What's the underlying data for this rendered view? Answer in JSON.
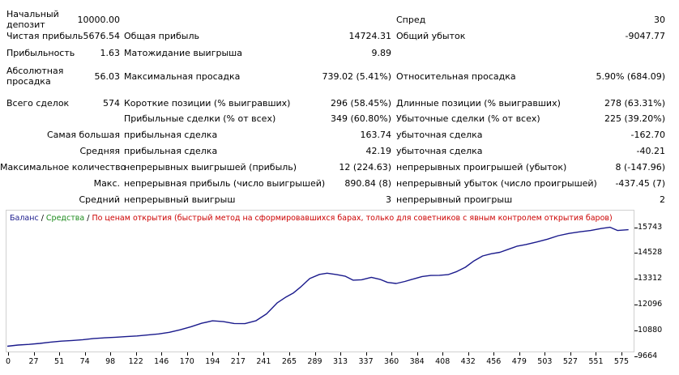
{
  "report": {
    "rows": [
      {
        "id": "r1",
        "c1": "Начальный\nдепозит",
        "v1": "10000.00",
        "c2": "",
        "v2": "",
        "c3": "Спред",
        "v3": "30"
      },
      {
        "id": "r2",
        "c1": "Чистая прибыль",
        "v1": "5676.54",
        "c2": "Общая прибыль",
        "v2": "14724.31",
        "c3": "Общий убыток",
        "v3": "-9047.77"
      },
      {
        "id": "r3",
        "c1": "Прибыльность",
        "v1": "1.63",
        "c2": "Матожидание выигрыша",
        "v2": "9.89",
        "c3": "",
        "v3": ""
      },
      {
        "id": "r4",
        "c1": "Абсолютная\nпросадка",
        "v1": "56.03",
        "c2": "Максимальная просадка",
        "v2": "739.02 (5.41%)",
        "c3": "Относительная просадка",
        "v3": "5.90% (684.09)"
      },
      {
        "id": "r5",
        "c1": "Всего сделок",
        "v1": "574",
        "c2": "Короткие позиции (% выигравших)",
        "v2": "296 (58.45%)",
        "c3": "Длинные позиции (% выигравших)",
        "v3": "278 (63.31%)"
      },
      {
        "id": "r6",
        "c1": "",
        "v1": "",
        "c2": "Прибыльные сделки (% от всех)",
        "v2": "349 (60.80%)",
        "c3": "Убыточные сделки (% от всех)",
        "v3": "225 (39.20%)"
      },
      {
        "id": "r7",
        "c1": "Самая большая",
        "v1": "",
        "c2": "прибыльная сделка",
        "v2": "163.74",
        "c3": "убыточная сделка",
        "v3": "-162.70"
      },
      {
        "id": "r8",
        "c1": "Средняя",
        "v1": "",
        "c2": "прибыльная сделка",
        "v2": "42.19",
        "c3": "убыточная сделка",
        "v3": "-40.21"
      },
      {
        "id": "r9",
        "c1": "Максимальное количество",
        "v1": "",
        "c2": "непрерывных выигрышей (прибыль)",
        "v2": "12 (224.63)",
        "c3": "непрерывных проигрышей (убыток)",
        "v3": "8 (-147.96)"
      },
      {
        "id": "r10",
        "c1": "Макс.",
        "v1": "",
        "c2": "непрерывная прибыль (число выигрышей)",
        "v2": "890.84 (8)",
        "c3": "непрерывный убыток (число проигрышей)",
        "v3": "-437.45 (7)"
      },
      {
        "id": "r11",
        "c1": "Средний",
        "v1": "",
        "c2": "непрерывный выигрыш",
        "v2": "3",
        "c3": "непрерывный проигрыш",
        "v3": "2"
      }
    ]
  },
  "legend": {
    "balance": "Баланс",
    "sep1": " / ",
    "equity": "Средства",
    "sep2": " / ",
    "mode": "По ценам открытия (быстрый метод на сформировавшихся барах, только для советников с явным контролем открытия баров)"
  },
  "colors": {
    "balance": "#1a1a8c",
    "equity": "#1c8a1c",
    "mode": "#cc0000",
    "grid": "#d0d0d0"
  },
  "chart_data": {
    "type": "line",
    "title": "",
    "xlabel": "",
    "ylabel": "",
    "x_ticks": [
      "0",
      "27",
      "51",
      "74",
      "98",
      "122",
      "146",
      "170",
      "194",
      "217",
      "241",
      "265",
      "289",
      "313",
      "337",
      "360",
      "384",
      "408",
      "432",
      "456",
      "479",
      "503",
      "527",
      "551",
      "575"
    ],
    "y_ticks": [
      "15743",
      "14528",
      "13312",
      "12096",
      "10880",
      "9664"
    ],
    "xlim": [
      0,
      576
    ],
    "ylim": [
      9664,
      15743
    ],
    "series": [
      {
        "name": "Баланс",
        "points": [
          [
            0,
            9920
          ],
          [
            10,
            9980
          ],
          [
            20,
            10010
          ],
          [
            30,
            10060
          ],
          [
            40,
            10120
          ],
          [
            50,
            10170
          ],
          [
            60,
            10200
          ],
          [
            70,
            10240
          ],
          [
            80,
            10300
          ],
          [
            90,
            10330
          ],
          [
            100,
            10360
          ],
          [
            110,
            10390
          ],
          [
            120,
            10420
          ],
          [
            130,
            10470
          ],
          [
            140,
            10520
          ],
          [
            150,
            10600
          ],
          [
            160,
            10720
          ],
          [
            170,
            10870
          ],
          [
            180,
            11040
          ],
          [
            190,
            11160
          ],
          [
            200,
            11120
          ],
          [
            210,
            11030
          ],
          [
            220,
            11020
          ],
          [
            230,
            11160
          ],
          [
            240,
            11500
          ],
          [
            250,
            12040
          ],
          [
            258,
            12320
          ],
          [
            265,
            12520
          ],
          [
            272,
            12830
          ],
          [
            280,
            13220
          ],
          [
            289,
            13420
          ],
          [
            296,
            13480
          ],
          [
            305,
            13410
          ],
          [
            313,
            13330
          ],
          [
            320,
            13140
          ],
          [
            328,
            13160
          ],
          [
            337,
            13280
          ],
          [
            345,
            13180
          ],
          [
            352,
            13030
          ],
          [
            360,
            12980
          ],
          [
            368,
            13080
          ],
          [
            376,
            13200
          ],
          [
            384,
            13320
          ],
          [
            392,
            13370
          ],
          [
            400,
            13380
          ],
          [
            408,
            13410
          ],
          [
            416,
            13560
          ],
          [
            424,
            13770
          ],
          [
            432,
            14080
          ],
          [
            440,
            14320
          ],
          [
            448,
            14430
          ],
          [
            456,
            14500
          ],
          [
            464,
            14650
          ],
          [
            472,
            14800
          ],
          [
            480,
            14880
          ],
          [
            490,
            15000
          ],
          [
            500,
            15140
          ],
          [
            510,
            15310
          ],
          [
            520,
            15420
          ],
          [
            530,
            15500
          ],
          [
            540,
            15560
          ],
          [
            550,
            15660
          ],
          [
            558,
            15720
          ],
          [
            565,
            15560
          ],
          [
            575,
            15600
          ]
        ]
      }
    ]
  }
}
